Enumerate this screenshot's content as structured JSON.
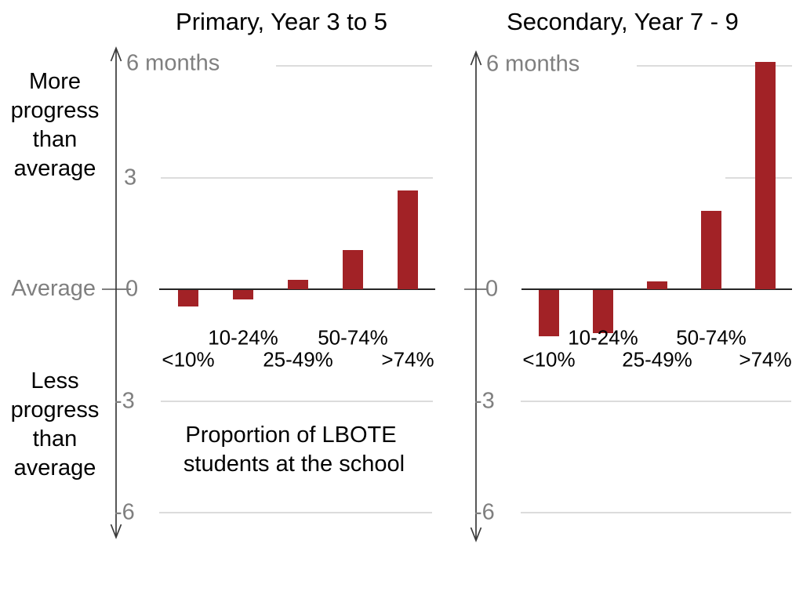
{
  "page": {
    "background": "#FFFFFF"
  },
  "colors": {
    "bar": "#A22226",
    "gridline": "#DCDCDC",
    "axis": "#3A3A3A",
    "zero_line": "#262626",
    "gray_text": "#7F7F7F",
    "black_text": "#000000"
  },
  "annotations": {
    "more_progress_lines": [
      "More",
      "progress",
      "than",
      "average"
    ],
    "average_label": "Average",
    "less_progress_lines": [
      "Less",
      "progress",
      "than",
      "average"
    ]
  },
  "chart_data": [
    {
      "type": "bar",
      "title": "Primary, Year 3 to 5",
      "unit_top_label": "6 months",
      "categories": [
        "<10%",
        "10-24%",
        "25-49%",
        "50-74%",
        ">74%"
      ],
      "values": [
        -0.45,
        -0.25,
        0.25,
        1.05,
        2.65
      ],
      "yticks": [
        {
          "value": 3,
          "label": "3"
        },
        {
          "value": 0,
          "label": "0"
        },
        {
          "value": -3,
          "label": "-3"
        },
        {
          "value": -6,
          "label": "-6"
        }
      ],
      "gridline_values": [
        6,
        3,
        -3,
        -6
      ],
      "ylim": [
        -6,
        6.3
      ],
      "grid": "horizontal-partial",
      "legend": "none",
      "xlabel_lines": [
        "Proportion of LBOTE",
        "students at the school"
      ]
    },
    {
      "type": "bar",
      "title": "Secondary, Year 7 - 9",
      "unit_top_label": "6 months",
      "categories": [
        "<10%",
        "10-24%",
        "25-49%",
        "50-74%",
        ">74%"
      ],
      "values": [
        -1.25,
        -1.15,
        0.2,
        2.1,
        6.1
      ],
      "yticks": [
        {
          "value": 0,
          "label": "0"
        },
        {
          "value": -3,
          "label": "-3"
        },
        {
          "value": -6,
          "label": "-6"
        }
      ],
      "gridline_values": [
        6,
        3,
        -3,
        -6
      ],
      "ylim": [
        -6,
        6.3
      ],
      "grid": "horizontal-partial",
      "legend": "none",
      "xlabel_lines": []
    }
  ]
}
